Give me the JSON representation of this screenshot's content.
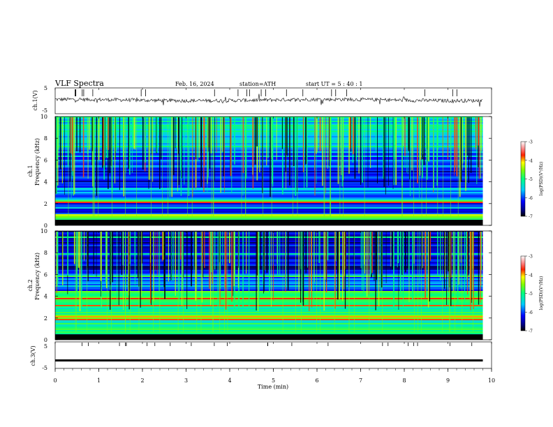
{
  "header": {
    "title": "VLF  Spectra",
    "date": "Feb. 16, 2024",
    "station": "station=ATH",
    "start_ut": "start  UT  =   5  : 40 : 1"
  },
  "x_axis": {
    "label": "Time  (min)",
    "range": [
      0,
      10
    ],
    "ticks": [
      "0",
      "1",
      "2",
      "3",
      "4",
      "5",
      "6",
      "7",
      "8",
      "9",
      "10"
    ]
  },
  "chart_data": [
    {
      "type": "line",
      "name": "ch1-waveform",
      "ylabel": "ch.1(V)",
      "ylim": [
        -5,
        5
      ],
      "yticks": [
        "5",
        "-5"
      ],
      "x_range_min": [
        0,
        9.8
      ],
      "baseline_v": 0.3
    },
    {
      "type": "heatmap",
      "name": "ch1-spectrogram",
      "ylabel_top": "ch.1",
      "ylabel": "Frequency  (kHz)",
      "ylim": [
        0,
        10
      ],
      "yticks": [
        "0",
        "2",
        "4",
        "6",
        "8",
        "10"
      ],
      "x_range_min": [
        0,
        9.8
      ],
      "colorbar": {
        "label": "log(PSD)(V²/Hz)",
        "range": [
          -7,
          -3
        ],
        "ticks": [
          "-3",
          "-4",
          "-5",
          "-6",
          "-7"
        ]
      },
      "bands_khz": [
        {
          "from": 0,
          "to": 0.5,
          "level": -7
        },
        {
          "from": 0.5,
          "to": 1.0,
          "level": -4.5
        },
        {
          "from": 1.0,
          "to": 2.0,
          "level": -6.2
        },
        {
          "from": 2.0,
          "to": 2.5,
          "level": -5.0
        },
        {
          "from": 2.5,
          "to": 3.5,
          "level": -5.8
        },
        {
          "from": 3.5,
          "to": 5.0,
          "level": -6.2
        },
        {
          "from": 5.0,
          "to": 7.0,
          "level": -5.8
        },
        {
          "from": 7.0,
          "to": 10.0,
          "level": -5.4
        }
      ]
    },
    {
      "type": "heatmap",
      "name": "ch2-spectrogram",
      "ylabel_top": "ch.2",
      "ylabel": "Frequency  (kHz)",
      "ylim": [
        0,
        10
      ],
      "yticks": [
        "0",
        "2",
        "4",
        "6",
        "8",
        "10"
      ],
      "x_range_min": [
        0,
        9.8
      ],
      "colorbar": {
        "label": "log(PSD)(V²/Hz)",
        "range": [
          -7,
          -3
        ],
        "ticks": [
          "-3",
          "-4",
          "-5",
          "-6",
          "-7"
        ]
      },
      "bands_khz": [
        {
          "from": 0,
          "to": 0.5,
          "level": -7
        },
        {
          "from": 0.5,
          "to": 1.8,
          "level": -5.0
        },
        {
          "from": 1.8,
          "to": 2.3,
          "level": -4.2
        },
        {
          "from": 2.3,
          "to": 4.5,
          "level": -5.0
        },
        {
          "from": 4.5,
          "to": 6.0,
          "level": -5.8
        },
        {
          "from": 6.0,
          "to": 10.0,
          "level": -6.4
        }
      ]
    },
    {
      "type": "line",
      "name": "ch3-waveform",
      "ylabel": "ch.3(V)",
      "ylim": [
        -5,
        5
      ],
      "yticks": [
        "5",
        "-5"
      ],
      "x_range_min": [
        0,
        9.8
      ],
      "baseline_v": -2
    }
  ]
}
